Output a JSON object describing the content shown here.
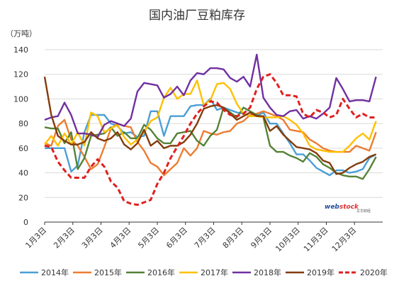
{
  "chart_data": {
    "type": "line",
    "title": "国内油厂豆粕库存",
    "unit_label": "（万吨）",
    "ylim": [
      0,
      140
    ],
    "y_ticks": [
      0,
      20,
      40,
      60,
      80,
      100,
      120,
      140
    ],
    "x_tick_labels": [
      "1月3日",
      "2月3日",
      "3月3日",
      "4月3日",
      "5月3日",
      "6月3日",
      "7月3日",
      "8月3日",
      "9月3日",
      "10月3日",
      "11月3日",
      "12月3日"
    ],
    "x_range": [
      0,
      51
    ],
    "grid": "horizontal",
    "legend_position": "bottom",
    "watermark": {
      "logo": "web",
      "logo_accent": "stock",
      "sub": "文华财经"
    },
    "series": [
      {
        "name": "2014年",
        "color": "#4a9fd6",
        "dash": false,
        "values": [
          60,
          60,
          60,
          60,
          41,
          46,
          73,
          87,
          87,
          87,
          80,
          78,
          72,
          73,
          69,
          70,
          90,
          90,
          70,
          86,
          86,
          86,
          94,
          95,
          95,
          100,
          91,
          93,
          91,
          89,
          88,
          86,
          86,
          89,
          80,
          80,
          72,
          64,
          55,
          55,
          50,
          44,
          41,
          38,
          42,
          42,
          40,
          41,
          43,
          52,
          55
        ]
      },
      {
        "name": "2015年",
        "color": "#ed7d31",
        "dash": false,
        "values": [
          64,
          62,
          78,
          83,
          67,
          62,
          53,
          43,
          47,
          61,
          76,
          80,
          78,
          77,
          65,
          58,
          48,
          45,
          38,
          43,
          48,
          60,
          54,
          60,
          74,
          72,
          71,
          73,
          74,
          80,
          82,
          87,
          88,
          90,
          88,
          86,
          83,
          75,
          74,
          73,
          67,
          64,
          60,
          58,
          57,
          57,
          57,
          62,
          60,
          58,
          73
        ]
      },
      {
        "name": "2016年",
        "color": "#548235",
        "dash": false,
        "values": [
          77,
          76,
          76,
          64,
          73,
          43,
          52,
          70,
          71,
          72,
          77,
          70,
          73,
          68,
          68,
          79,
          75,
          68,
          64,
          64,
          72,
          73,
          74,
          66,
          62,
          70,
          75,
          93,
          89,
          85,
          93,
          90,
          87,
          85,
          62,
          57,
          57,
          54,
          52,
          49,
          56,
          53,
          47,
          44,
          40,
          38,
          37,
          37,
          35,
          43,
          53
        ]
      },
      {
        "name": "2017年",
        "color": "#ffc000",
        "dash": false,
        "values": [
          63,
          70,
          62,
          72,
          63,
          73,
          62,
          89,
          86,
          73,
          76,
          79,
          69,
          63,
          67,
          73,
          82,
          85,
          101,
          109,
          100,
          104,
          104,
          115,
          95,
          99,
          112,
          113,
          108,
          96,
          88,
          86,
          86,
          85,
          85,
          85,
          86,
          83,
          79,
          72,
          62,
          59,
          58,
          57,
          57,
          57,
          62,
          68,
          72,
          67,
          82
        ]
      },
      {
        "name": "2018年",
        "color": "#7030a0",
        "dash": false,
        "values": [
          83,
          85,
          86,
          97,
          87,
          72,
          72,
          71,
          69,
          79,
          82,
          80,
          78,
          84,
          106,
          113,
          112,
          111,
          101,
          104,
          110,
          103,
          115,
          121,
          120,
          125,
          125,
          124,
          117,
          114,
          118,
          110,
          136,
          101,
          93,
          87,
          86,
          90,
          91,
          84,
          86,
          84,
          88,
          93,
          117,
          108,
          98,
          99,
          99,
          98,
          118
        ]
      },
      {
        "name": "2019年",
        "color": "#843c0c",
        "dash": false,
        "values": [
          118,
          87,
          70,
          66,
          63,
          63,
          65,
          73,
          68,
          66,
          68,
          73,
          63,
          59,
          64,
          75,
          62,
          66,
          60,
          62,
          62,
          65,
          71,
          80,
          92,
          94,
          95,
          93,
          88,
          83,
          86,
          89,
          86,
          86,
          74,
          78,
          71,
          66,
          61,
          60,
          59,
          56,
          50,
          48,
          39,
          40,
          44,
          47,
          49,
          53,
          55
        ]
      },
      {
        "name": "2020年",
        "color": "#e02020",
        "dash": true,
        "values": [
          62,
          61,
          49,
          42,
          36,
          36,
          36,
          45,
          51,
          45,
          33,
          28,
          17,
          15,
          14,
          16,
          18,
          31,
          40,
          52,
          61,
          70,
          80,
          88,
          94,
          98,
          97,
          91,
          87,
          86,
          88,
          93,
          108,
          118,
          120,
          113,
          103,
          103,
          102,
          88,
          85,
          91,
          89,
          85,
          87,
          100,
          92,
          85,
          88,
          85,
          85
        ]
      }
    ]
  }
}
